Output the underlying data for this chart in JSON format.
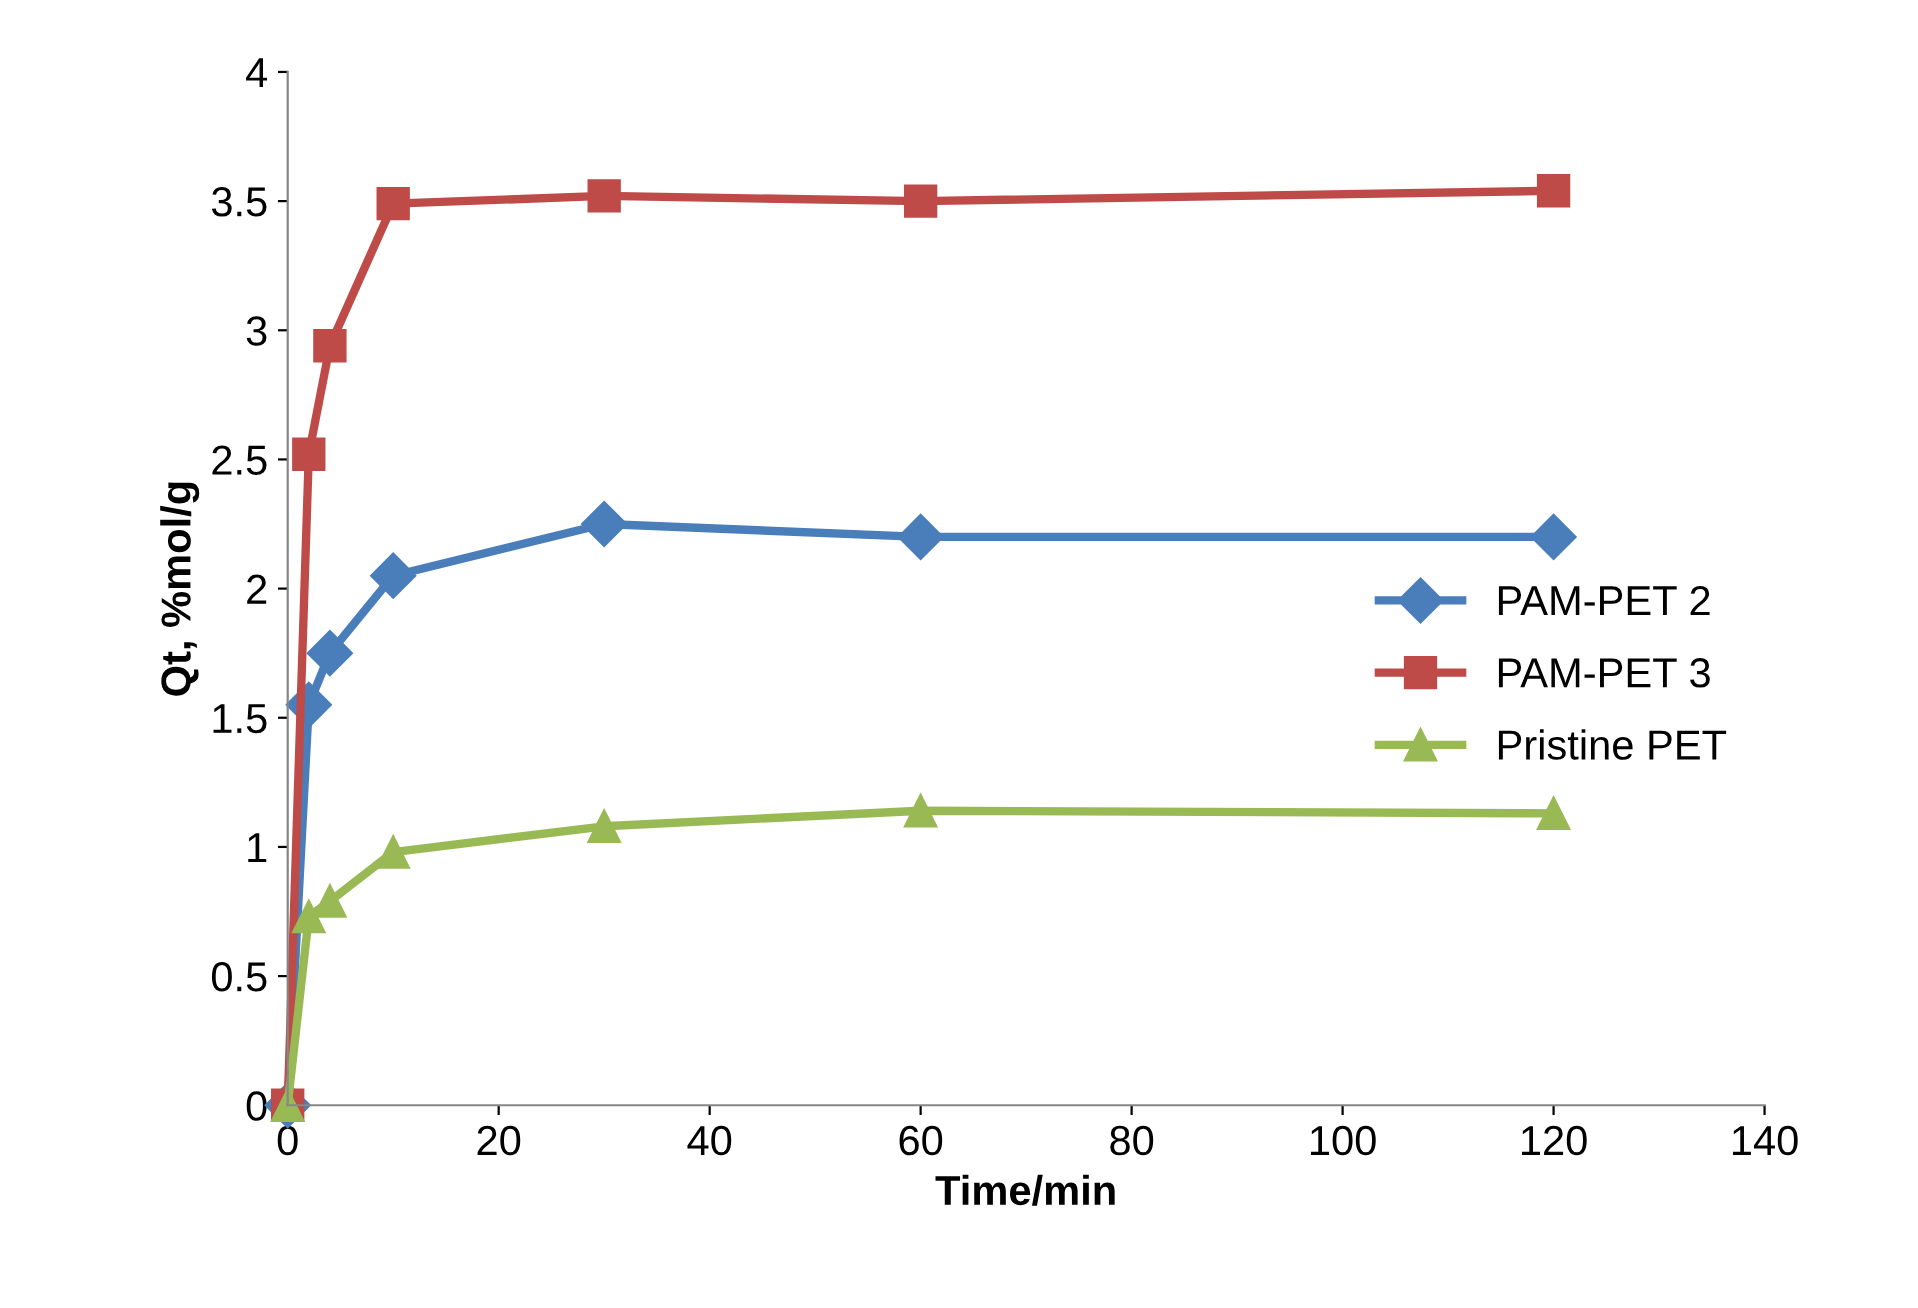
{
  "chart_data": {
    "type": "line",
    "xlabel": "Time/min",
    "ylabel": "Qt, %mol/g",
    "x": [
      0,
      2,
      4,
      10,
      30,
      60,
      120
    ],
    "series": [
      {
        "name": "PAM-PET 2",
        "color": "#4a7ebb",
        "marker": "diamond",
        "values": [
          0,
          1.55,
          1.75,
          2.05,
          2.25,
          2.2,
          2.2
        ]
      },
      {
        "name": "PAM-PET 3",
        "color": "#be4b48",
        "marker": "square",
        "values": [
          0,
          2.52,
          2.94,
          3.49,
          3.52,
          3.5,
          3.54
        ]
      },
      {
        "name": "Pristine PET",
        "color": "#98b954",
        "marker": "triangle",
        "values": [
          0,
          0.73,
          0.79,
          0.98,
          1.08,
          1.14,
          1.13
        ]
      }
    ],
    "xlim": [
      0,
      140
    ],
    "xticks": [
      0,
      20,
      40,
      60,
      80,
      100,
      120,
      140
    ],
    "ylim": [
      0,
      4
    ],
    "yticks": [
      0,
      0.5,
      1,
      1.5,
      2,
      2.5,
      3,
      3.5,
      4
    ],
    "grid": false,
    "legend": "right",
    "line_style": "solid"
  }
}
